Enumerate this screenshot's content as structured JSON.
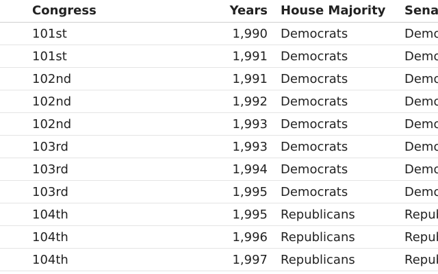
{
  "table": {
    "header": [
      "Congress",
      "Years",
      "House Majority",
      "Senate Majority"
    ],
    "rows": [
      [
        "101st",
        "1,990",
        "Democrats",
        "Democrats"
      ],
      [
        "101st",
        "1,991",
        "Democrats",
        "Democrats"
      ],
      [
        "102nd",
        "1,991",
        "Democrats",
        "Democrats"
      ],
      [
        "102nd",
        "1,992",
        "Democrats",
        "Democrats"
      ],
      [
        "102nd",
        "1,993",
        "Democrats",
        "Democrats"
      ],
      [
        "103rd",
        "1,993",
        "Democrats",
        "Democrats"
      ],
      [
        "103rd",
        "1,994",
        "Democrats",
        "Democrats"
      ],
      [
        "103rd",
        "1,995",
        "Democrats",
        "Democrats"
      ],
      [
        "104th",
        "1,995",
        "Republicans",
        "Republicans"
      ],
      [
        "104th",
        "1,996",
        "Republicans",
        "Republicans"
      ],
      [
        "104th",
        "1,997",
        "Republicans",
        "Republicans"
      ]
    ]
  }
}
